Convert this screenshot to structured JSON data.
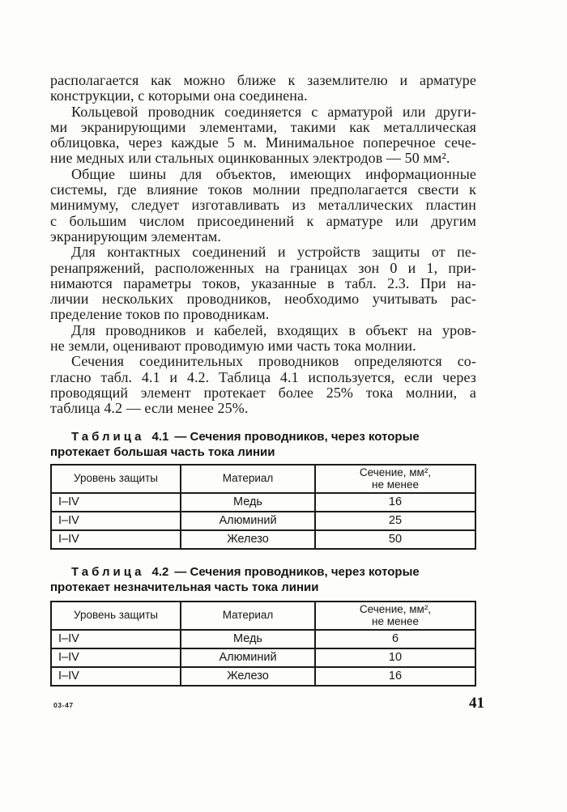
{
  "document": {
    "language": "ru",
    "colors": {
      "ink": "#1a1a1a",
      "paper": "#fdfdfc"
    }
  },
  "body": {
    "lines": [
      "располагается как можно ближе к заземлителю и арматуре",
      "конструкции, с которыми она соединена.",
      "Кольцевой проводник соединяется с арматурой или други-",
      "ми экранирующими элементами, такими как металлическая",
      "облицовка, через каждые 5 м. Минимальное поперечное сече-",
      "ние медных или стальных оцинкованных электродов — 50 мм².",
      "Общие шины для объектов, имеющих информационные",
      "системы, где влияние токов молнии предполагается свести к",
      "минимуму, следует изготавливать из металлических пластин",
      "с большим числом присоединений к арматуре или другим",
      "экранирующим элементам.",
      "Для контактных соединений и устройств защиты от пе-",
      "ренапряжений, расположенных на границах зон 0 и 1, при-",
      "нимаются параметры токов, указанные в табл. 2.3. При на-",
      "личии нескольких проводников, необходимо учитывать рас-",
      "пределение токов по проводникам.",
      "Для проводников и кабелей, входящих в объект на уров-",
      "не земли, оценивают проводимую ими часть тока молнии.",
      "Сечения соединительных проводников определяются со-",
      "гласно табл. 4.1 и 4.2. Таблица 4.1 используется, если через",
      "проводящий элемент протекает более 25% тока молнии, а",
      "таблица 4.2 — если менее 25%."
    ]
  },
  "tables": [
    {
      "caption": {
        "word": "Таблица",
        "number": "4.1",
        "rest": "— Сечения проводников, через которые",
        "line2": "протекает большая часть тока линии"
      },
      "headers": {
        "col1": "Уровень защиты",
        "col2": "Материал",
        "col3_line1": "Сечение, мм²,",
        "col3_line2": "не менее"
      },
      "rows": [
        {
          "level": "I–IV",
          "material": "Медь",
          "section": "16"
        },
        {
          "level": "I–IV",
          "material": "Алюминий",
          "section": "25"
        },
        {
          "level": "I–IV",
          "material": "Железо",
          "section": "50"
        }
      ]
    },
    {
      "caption": {
        "word": "Таблица",
        "number": "4.2",
        "rest": "— Сечения проводников, через которые",
        "line2": "протекает незначительная часть тока линии"
      },
      "headers": {
        "col1": "Уровень защиты",
        "col2": "Материал",
        "col3_line1": "Сечение, мм²,",
        "col3_line2": "не менее"
      },
      "rows": [
        {
          "level": "I–IV",
          "material": "Медь",
          "section": "6"
        },
        {
          "level": "I–IV",
          "material": "Алюминий",
          "section": "10"
        },
        {
          "level": "I–IV",
          "material": "Железо",
          "section": "16"
        }
      ]
    }
  ],
  "footer": {
    "print_code": "03-47",
    "page_number": "41"
  }
}
